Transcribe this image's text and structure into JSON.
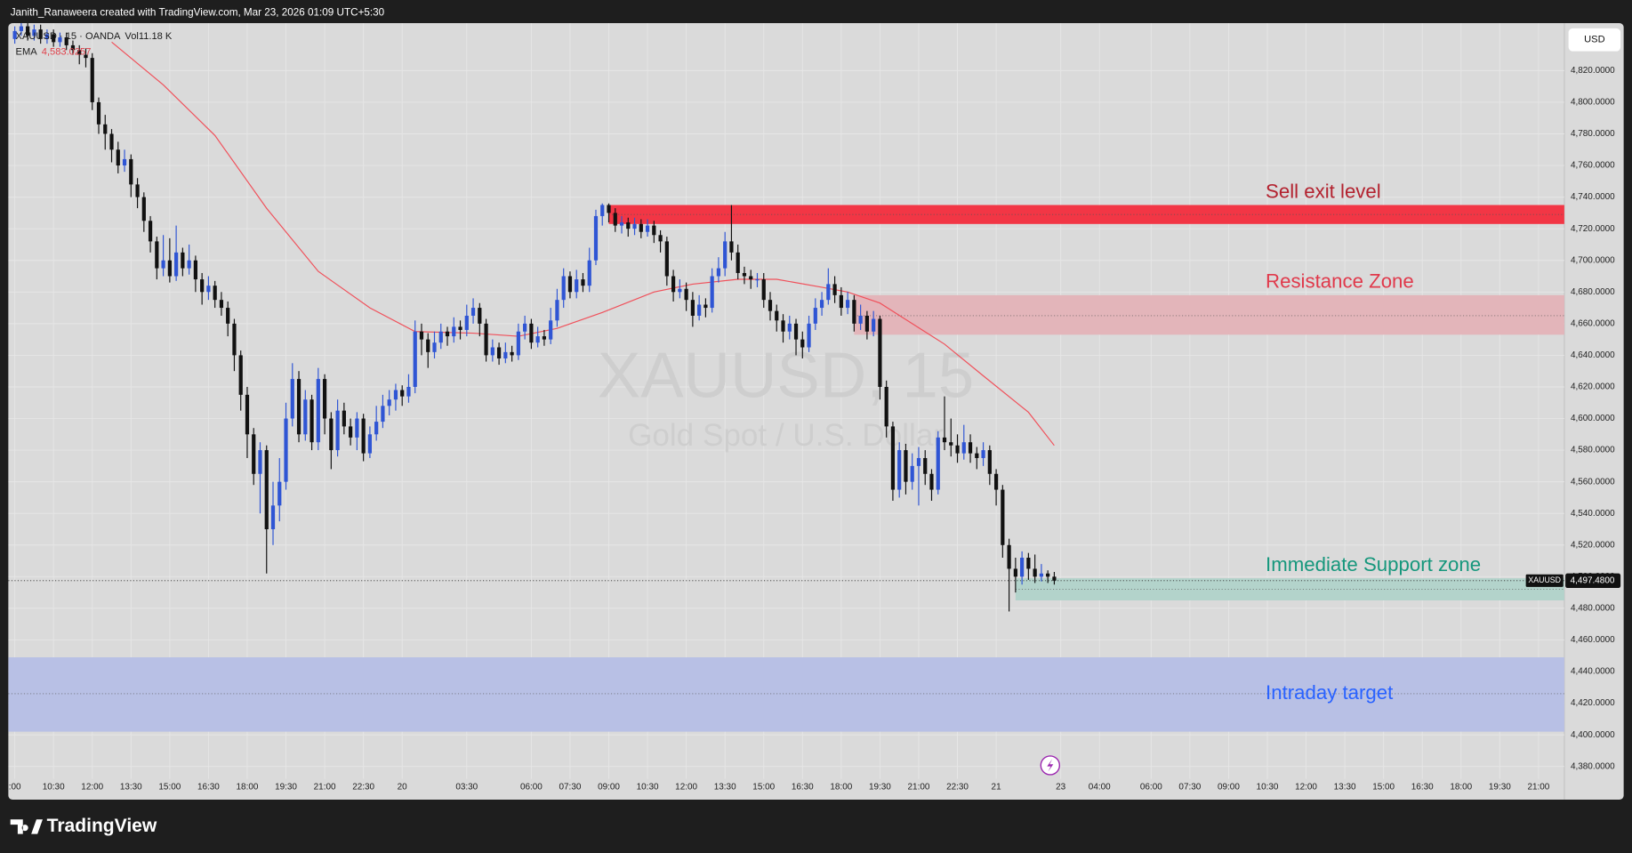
{
  "header": "Janith_Ranaweera created with TradingView.com, Mar 23, 2026 01:09 UTC+5:30",
  "footer": "TradingView",
  "chart_data": {
    "type": "candlestick",
    "symbol": "XAUUSD · 15 · OANDA",
    "volume": "Vol11.18 K",
    "watermark": "XAUUSD, 15",
    "watermark_sub": "Gold Spot / U.S. Dollar",
    "currency": "USD",
    "up_color": "#2f55d4",
    "down_color": "#111111",
    "grid": true,
    "xlim": [
      -1,
      240
    ],
    "ylim": [
      4359,
      4850
    ],
    "candles": {
      "open": [
        4840,
        4845,
        4848,
        4842,
        4846,
        4840,
        4843,
        4838,
        4841,
        4836,
        4833,
        4830,
        4828,
        4800,
        4786,
        4780,
        4770,
        4760,
        4764,
        4748,
        4740,
        4725,
        4712,
        4695,
        4700,
        4690,
        4705,
        4695,
        4700,
        4688,
        4680,
        4684,
        4675,
        4670,
        4660,
        4640,
        4615,
        4590,
        4565,
        4580,
        4530,
        4545,
        4560,
        4600,
        4625,
        4590,
        4612,
        4585,
        4625,
        4600,
        4580,
        4605,
        4595,
        4588,
        4600,
        4578,
        4590,
        4598,
        4608,
        4612,
        4618,
        4614,
        4620,
        4655,
        4650,
        4642,
        4648,
        4655,
        4652,
        4658,
        4656,
        4665,
        4670,
        4660,
        4640,
        4645,
        4638,
        4642,
        4640,
        4655,
        4660,
        4648,
        4652,
        4650,
        4662,
        4675,
        4690,
        4680,
        4688,
        4684,
        4700,
        4728,
        4735,
        4730,
        4722,
        4724,
        4720,
        4723,
        4718,
        4722,
        4716,
        4712,
        4690,
        4680,
        4682,
        4675,
        4665,
        4672,
        4670,
        4690,
        4695,
        4712,
        4705,
        4692,
        4690,
        4688,
        4688,
        4675,
        4668,
        4662,
        4655,
        4660,
        4650,
        4645,
        4660,
        4670,
        4675,
        4685,
        4678,
        4670,
        4675,
        4660,
        4665,
        4655,
        4663,
        4620,
        4595,
        4555,
        4580,
        4560,
        4570,
        4575,
        4565,
        4555,
        4588,
        4585,
        4583,
        4578,
        4585,
        4578,
        4575,
        4580,
        4565,
        4555,
        4520,
        4505,
        4500,
        4512,
        4505,
        4500,
        4502,
        4500
      ],
      "high": [
        4848,
        4851,
        4851,
        4849,
        4849,
        4846,
        4846,
        4844,
        4844,
        4839,
        4836,
        4834,
        4831,
        4803,
        4792,
        4783,
        4775,
        4770,
        4767,
        4752,
        4743,
        4728,
        4715,
        4716,
        4714,
        4722,
        4708,
        4710,
        4703,
        4692,
        4690,
        4687,
        4680,
        4674,
        4663,
        4643,
        4620,
        4594,
        4585,
        4583,
        4560,
        4575,
        4610,
        4635,
        4630,
        4618,
        4615,
        4632,
        4628,
        4604,
        4612,
        4610,
        4600,
        4604,
        4603,
        4595,
        4608,
        4615,
        4618,
        4622,
        4621,
        4628,
        4662,
        4660,
        4654,
        4655,
        4660,
        4658,
        4664,
        4662,
        4672,
        4676,
        4673,
        4663,
        4650,
        4648,
        4648,
        4646,
        4660,
        4665,
        4663,
        4658,
        4656,
        4670,
        4682,
        4695,
        4693,
        4694,
        4692,
        4708,
        4732,
        4736,
        4736,
        4733,
        4728,
        4727,
        4727,
        4726,
        4726,
        4725,
        4719,
        4715,
        4694,
        4688,
        4686,
        4680,
        4678,
        4676,
        4695,
        4702,
        4718,
        4735,
        4710,
        4696,
        4694,
        4692,
        4692,
        4680,
        4672,
        4666,
        4665,
        4663,
        4655,
        4665,
        4676,
        4680,
        4695,
        4690,
        4683,
        4680,
        4678,
        4672,
        4668,
        4668,
        4665,
        4624,
        4598,
        4585,
        4584,
        4578,
        4582,
        4580,
        4568,
        4592,
        4614,
        4600,
        4590,
        4596,
        4590,
        4582,
        4585,
        4583,
        4568,
        4558,
        4524,
        4512,
        4516,
        4515,
        4514,
        4508,
        4504,
        4503
      ],
      "low": [
        4837,
        4842,
        4839,
        4839,
        4837,
        4837,
        4835,
        4835,
        4833,
        4830,
        4824,
        4822,
        4795,
        4780,
        4770,
        4762,
        4755,
        4756,
        4740,
        4733,
        4718,
        4705,
        4688,
        4690,
        4686,
        4687,
        4690,
        4691,
        4680,
        4672,
        4675,
        4670,
        4665,
        4652,
        4630,
        4605,
        4575,
        4558,
        4540,
        4502,
        4520,
        4535,
        4555,
        4595,
        4585,
        4586,
        4580,
        4580,
        4590,
        4568,
        4576,
        4590,
        4583,
        4580,
        4573,
        4575,
        4586,
        4594,
        4602,
        4605,
        4608,
        4610,
        4616,
        4640,
        4632,
        4638,
        4644,
        4646,
        4648,
        4650,
        4652,
        4660,
        4652,
        4636,
        4636,
        4634,
        4635,
        4636,
        4637,
        4650,
        4644,
        4645,
        4646,
        4647,
        4658,
        4670,
        4676,
        4676,
        4680,
        4680,
        4697,
        4722,
        4724,
        4718,
        4717,
        4715,
        4716,
        4714,
        4715,
        4711,
        4705,
        4684,
        4674,
        4676,
        4668,
        4658,
        4662,
        4664,
        4667,
        4686,
        4690,
        4700,
        4688,
        4685,
        4682,
        4683,
        4670,
        4662,
        4655,
        4648,
        4650,
        4640,
        4638,
        4642,
        4656,
        4665,
        4672,
        4673,
        4665,
        4666,
        4655,
        4656,
        4650,
        4652,
        4612,
        4588,
        4548,
        4550,
        4552,
        4555,
        4545,
        4558,
        4548,
        4552,
        4580,
        4576,
        4572,
        4574,
        4572,
        4568,
        4570,
        4558,
        4545,
        4512,
        4478,
        4490,
        4495,
        4498,
        4496,
        4497,
        4496,
        4495
      ],
      "close": [
        4845,
        4848,
        4842,
        4846,
        4840,
        4843,
        4838,
        4841,
        4836,
        4833,
        4830,
        4828,
        4800,
        4786,
        4780,
        4770,
        4760,
        4764,
        4748,
        4740,
        4725,
        4712,
        4695,
        4700,
        4690,
        4705,
        4695,
        4700,
        4688,
        4680,
        4684,
        4675,
        4670,
        4660,
        4640,
        4615,
        4590,
        4565,
        4580,
        4530,
        4545,
        4560,
        4600,
        4625,
        4590,
        4612,
        4585,
        4625,
        4600,
        4580,
        4605,
        4595,
        4588,
        4600,
        4578,
        4590,
        4598,
        4608,
        4612,
        4618,
        4614,
        4620,
        4655,
        4650,
        4642,
        4648,
        4655,
        4652,
        4658,
        4656,
        4665,
        4670,
        4660,
        4640,
        4645,
        4638,
        4642,
        4640,
        4655,
        4660,
        4648,
        4652,
        4650,
        4662,
        4675,
        4690,
        4680,
        4688,
        4684,
        4700,
        4728,
        4735,
        4730,
        4722,
        4724,
        4720,
        4723,
        4718,
        4722,
        4716,
        4712,
        4690,
        4680,
        4682,
        4675,
        4665,
        4672,
        4670,
        4690,
        4695,
        4712,
        4705,
        4692,
        4690,
        4688,
        4688,
        4675,
        4668,
        4662,
        4655,
        4660,
        4650,
        4645,
        4660,
        4670,
        4675,
        4685,
        4678,
        4670,
        4675,
        4660,
        4665,
        4655,
        4663,
        4620,
        4595,
        4555,
        4580,
        4560,
        4570,
        4575,
        4565,
        4555,
        4588,
        4585,
        4583,
        4578,
        4585,
        4578,
        4575,
        4580,
        4565,
        4555,
        4520,
        4505,
        4500,
        4512,
        4505,
        4500,
        4502,
        4500,
        4497.48
      ]
    },
    "ema": {
      "name": "EMA",
      "value_label": "4,583.0257",
      "color": "#f0505a",
      "x": [
        15,
        23,
        31,
        39,
        47,
        55,
        62,
        71,
        78,
        84,
        91,
        99,
        105,
        112,
        118,
        125,
        129,
        134,
        139,
        144,
        150,
        157,
        161
      ],
      "values": [
        4838,
        4811,
        4779,
        4733,
        4693,
        4670,
        4655,
        4654,
        4652,
        4657,
        4667,
        4680,
        4685,
        4688,
        4688,
        4683,
        4680,
        4673,
        4660,
        4647,
        4627,
        4604,
        4583
      ]
    },
    "last_price": {
      "name": "XAUUSD",
      "value": 4497.48,
      "value_label": "4,497.4800"
    },
    "zones": [
      {
        "label": "Sell exit level",
        "low": 4723,
        "high": 4735,
        "mid": 4729,
        "start": 92,
        "fill": "#f23645",
        "text_color": "#b3222f",
        "label_position": "above"
      },
      {
        "label": "Resistance Zone",
        "low": 4653,
        "high": 4678,
        "mid": 4665,
        "start": 130,
        "fill": "#e3b5ba",
        "text_color": "#e0394b",
        "label_position": "above"
      },
      {
        "label": "Immediate Support zone",
        "low": 4485,
        "high": 4499,
        "mid": 4492,
        "start": 155,
        "fill": "#b3d3cb",
        "text_color": "#16977c",
        "label_position": "above"
      },
      {
        "label": "Intraday target",
        "low": 4402,
        "high": 4449,
        "mid": 4426,
        "start": -1,
        "fill": "#b8c0e5",
        "text_color": "#2962ff",
        "label_position": "inside"
      }
    ],
    "xticks": [
      {
        "value": 0,
        "label": ":00"
      },
      {
        "value": 6,
        "label": "10:30"
      },
      {
        "value": 12,
        "label": "12:00"
      },
      {
        "value": 18,
        "label": "13:30"
      },
      {
        "value": 24,
        "label": "15:00"
      },
      {
        "value": 30,
        "label": "16:30"
      },
      {
        "value": 36,
        "label": "18:00"
      },
      {
        "value": 42,
        "label": "19:30"
      },
      {
        "value": 48,
        "label": "21:00"
      },
      {
        "value": 54,
        "label": "22:30"
      },
      {
        "value": 60,
        "label": "20"
      },
      {
        "value": 70,
        "label": "03:30"
      },
      {
        "value": 80,
        "label": "06:00"
      },
      {
        "value": 86,
        "label": "07:30"
      },
      {
        "value": 92,
        "label": "09:00"
      },
      {
        "value": 98,
        "label": "10:30"
      },
      {
        "value": 104,
        "label": "12:00"
      },
      {
        "value": 110,
        "label": "13:30"
      },
      {
        "value": 116,
        "label": "15:00"
      },
      {
        "value": 122,
        "label": "16:30"
      },
      {
        "value": 128,
        "label": "18:00"
      },
      {
        "value": 134,
        "label": "19:30"
      },
      {
        "value": 140,
        "label": "21:00"
      },
      {
        "value": 146,
        "label": "22:30"
      },
      {
        "value": 152,
        "label": "21"
      },
      {
        "value": 162,
        "label": "23"
      },
      {
        "value": 168,
        "label": "04:00"
      },
      {
        "value": 176,
        "label": "06:00"
      },
      {
        "value": 182,
        "label": "07:30"
      },
      {
        "value": 188,
        "label": "09:00"
      },
      {
        "value": 194,
        "label": "10:30"
      },
      {
        "value": 200,
        "label": "12:00"
      },
      {
        "value": 206,
        "label": "13:30"
      },
      {
        "value": 212,
        "label": "15:00"
      },
      {
        "value": 218,
        "label": "16:30"
      },
      {
        "value": 224,
        "label": "18:00"
      },
      {
        "value": 230,
        "label": "19:30"
      },
      {
        "value": 236,
        "label": "21:00"
      }
    ],
    "yticks": [
      {
        "value": 4380,
        "label": "4,380.0000"
      },
      {
        "value": 4400,
        "label": "4,400.0000"
      },
      {
        "value": 4420,
        "label": "4,420.0000"
      },
      {
        "value": 4440,
        "label": "4,440.0000"
      },
      {
        "value": 4460,
        "label": "4,460.0000"
      },
      {
        "value": 4480,
        "label": "4,480.0000"
      },
      {
        "value": 4500,
        "label": "4,500.0000"
      },
      {
        "value": 4520,
        "label": "4,520.0000"
      },
      {
        "value": 4540,
        "label": "4,540.0000"
      },
      {
        "value": 4560,
        "label": "4,560.0000"
      },
      {
        "value": 4580,
        "label": "4,580.0000"
      },
      {
        "value": 4600,
        "label": "4,600.0000"
      },
      {
        "value": 4620,
        "label": "4,620.0000"
      },
      {
        "value": 4640,
        "label": "4,640.0000"
      },
      {
        "value": 4660,
        "label": "4,660.0000"
      },
      {
        "value": 4680,
        "label": "4,680.0000"
      },
      {
        "value": 4700,
        "label": "4,700.0000"
      },
      {
        "value": 4720,
        "label": "4,720.0000"
      },
      {
        "value": 4740,
        "label": "4,740.0000"
      },
      {
        "value": 4760,
        "label": "4,760.0000"
      },
      {
        "value": 4780,
        "label": "4,780.0000"
      },
      {
        "value": 4800,
        "label": "4,800.0000"
      },
      {
        "value": 4820,
        "label": "4,820.0000"
      }
    ]
  }
}
